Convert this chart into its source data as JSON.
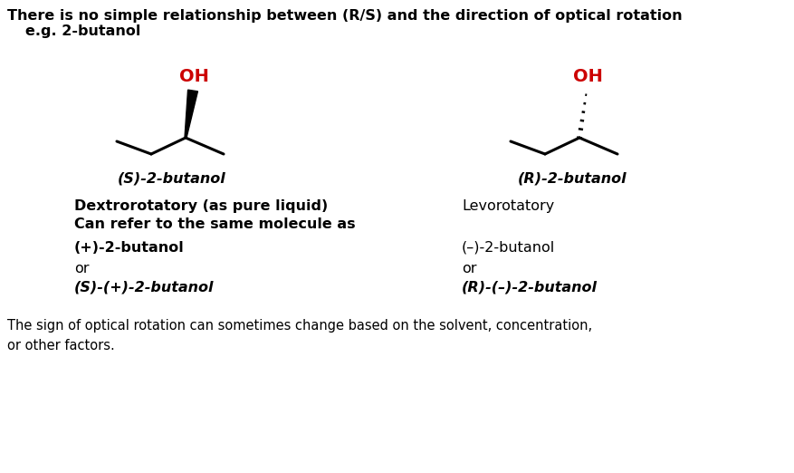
{
  "bg_color": "#ffffff",
  "title_line1": "There is no simple relationship between (R/S) and the direction of optical rotation",
  "title_line2": "e.g. 2-butanol",
  "title_fontsize": 11.5,
  "OH_color": "#cc0000",
  "bond_color": "#000000",
  "label_fontsize": 11.5,
  "footer_fontsize": 10.5,
  "footer": "The sign of optical rotation can sometimes change based on the solvent, concentration,\nor other factors."
}
